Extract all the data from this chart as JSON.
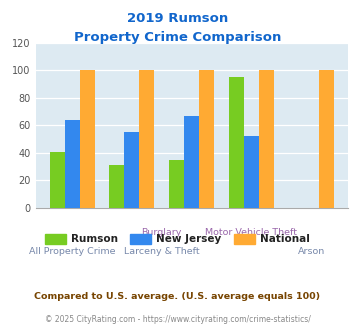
{
  "title_line1": "2019 Rumson",
  "title_line2": "Property Crime Comparison",
  "rumson": [
    41,
    31,
    35,
    95,
    0
  ],
  "new_jersey": [
    64,
    55,
    67,
    52,
    0
  ],
  "national": [
    100,
    100,
    100,
    100,
    100
  ],
  "color_rumson": "#77cc22",
  "color_nj": "#3388ee",
  "color_national": "#ffaa33",
  "ylim": [
    0,
    120
  ],
  "yticks": [
    0,
    20,
    40,
    60,
    80,
    100,
    120
  ],
  "title_color": "#1166cc",
  "legend_label_rumson": "Rumson",
  "legend_label_nj": "New Jersey",
  "legend_label_national": "National",
  "footnote1": "Compared to U.S. average. (U.S. average equals 100)",
  "footnote2": "© 2025 CityRating.com - https://www.cityrating.com/crime-statistics/",
  "bg_color": "#ddeaf2",
  "fig_bg": "#ffffff",
  "label_color_row1": "#9966aa",
  "label_color_row2": "#7788aa",
  "bar_width": 0.25,
  "n_groups": 5
}
